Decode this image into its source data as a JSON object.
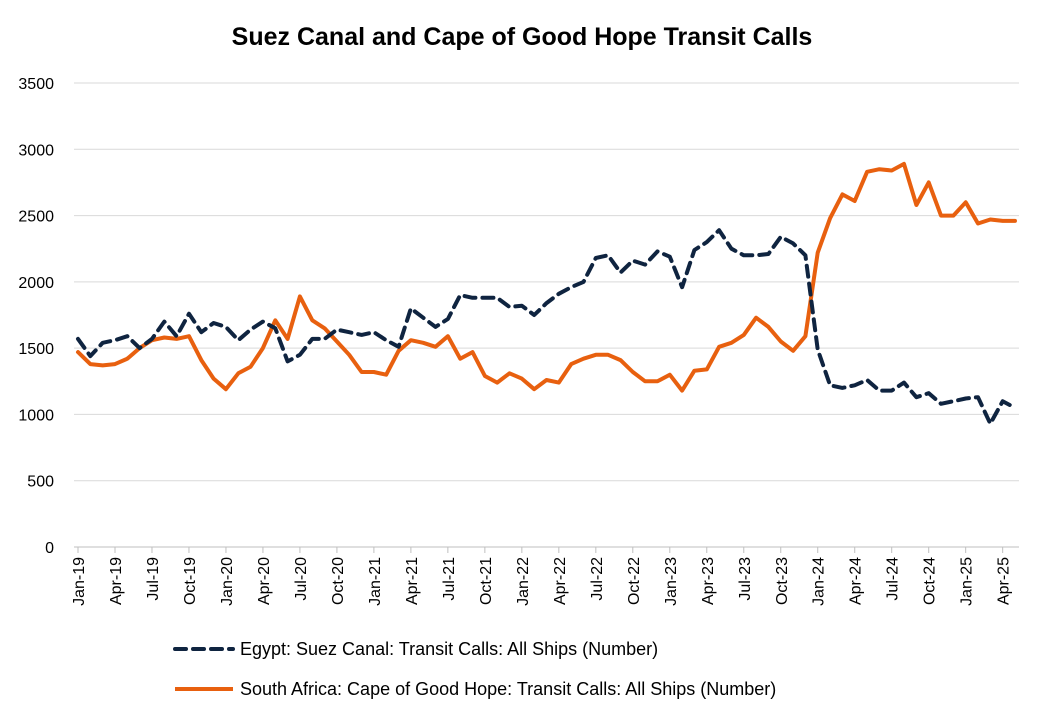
{
  "chart_data": {
    "type": "line",
    "title": "Suez Canal and Cape of Good Hope Transit Calls",
    "xlabel": "",
    "ylabel": "",
    "ylim": [
      0,
      3500
    ],
    "yticks": [
      0,
      500,
      1000,
      1500,
      2000,
      2500,
      3000,
      3500
    ],
    "grid": true,
    "legend_position": "bottom",
    "x_tick_labels": [
      "Jan-19",
      "Apr-19",
      "Jul-19",
      "Oct-19",
      "Jan-20",
      "Apr-20",
      "Jul-20",
      "Oct-20",
      "Jan-21",
      "Apr-21",
      "Jul-21",
      "Oct-21",
      "Jan-22",
      "Apr-22",
      "Jul-22",
      "Oct-22",
      "Jan-23",
      "Apr-23",
      "Jul-23",
      "Oct-23",
      "Jan-24",
      "Apr-24",
      "Jul-24",
      "Oct-24",
      "Jan-25",
      "Apr-25"
    ],
    "x_start": "Jan-19",
    "x_end": "Apr-25",
    "series": [
      {
        "name": "Egypt: Suez Canal: Transit Calls: All Ships (Number)",
        "color": "#0f2440",
        "style": "dashed",
        "values": [
          1570,
          1440,
          1540,
          1560,
          1590,
          1500,
          1570,
          1700,
          1590,
          1760,
          1620,
          1690,
          1660,
          1560,
          1640,
          1700,
          1650,
          1400,
          1450,
          1570,
          1570,
          1640,
          1620,
          1600,
          1620,
          1560,
          1510,
          1800,
          1730,
          1660,
          1720,
          1900,
          1880,
          1880,
          1880,
          1810,
          1820,
          1750,
          1840,
          1910,
          1960,
          2000,
          2180,
          2200,
          2070,
          2160,
          2130,
          2230,
          2190,
          1960,
          2240,
          2300,
          2390,
          2250,
          2200,
          2200,
          2210,
          2340,
          2290,
          2200,
          1490,
          1220,
          1200,
          1220,
          1260,
          1180,
          1180,
          1240,
          1130,
          1160,
          1080,
          1100,
          1120,
          1130,
          930,
          1100,
          1050
        ]
      },
      {
        "name": "South Africa: Cape of Good Hope: Transit Calls: All Ships (Number)",
        "color": "#e8600f",
        "style": "solid",
        "values": [
          1470,
          1380,
          1370,
          1380,
          1420,
          1500,
          1560,
          1580,
          1570,
          1590,
          1410,
          1270,
          1190,
          1310,
          1360,
          1500,
          1710,
          1570,
          1890,
          1710,
          1650,
          1550,
          1450,
          1320,
          1320,
          1300,
          1480,
          1560,
          1540,
          1510,
          1590,
          1420,
          1470,
          1290,
          1240,
          1310,
          1270,
          1190,
          1260,
          1240,
          1380,
          1420,
          1450,
          1450,
          1410,
          1320,
          1250,
          1250,
          1300,
          1180,
          1330,
          1340,
          1510,
          1540,
          1600,
          1730,
          1660,
          1550,
          1480,
          1590,
          2220,
          2480,
          2660,
          2610,
          2830,
          2850,
          2840,
          2890,
          2580,
          2750,
          2500,
          2500,
          2600,
          2440,
          2470,
          2460,
          2460
        ]
      }
    ]
  }
}
